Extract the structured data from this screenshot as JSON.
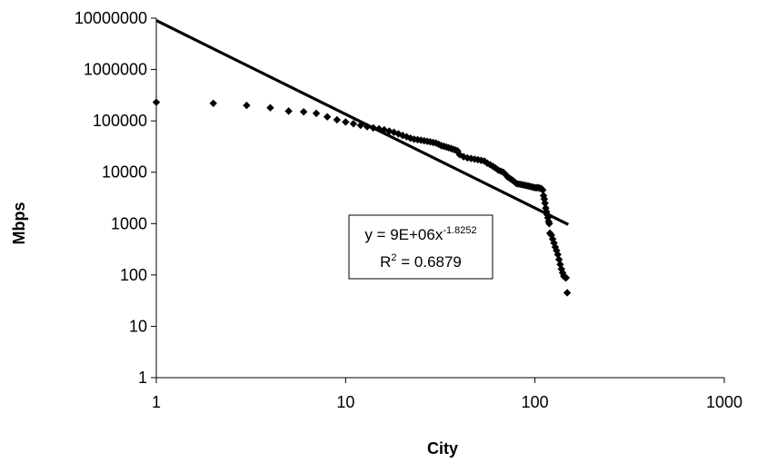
{
  "chart_data": {
    "type": "scatter",
    "xscale": "log",
    "yscale": "log",
    "xlabel": "City",
    "ylabel": "Mbps",
    "xlim": [
      1,
      1000
    ],
    "ylim": [
      1,
      10000000
    ],
    "x_ticks": [
      1,
      10,
      100,
      1000
    ],
    "x_tick_labels": [
      "1",
      "10",
      "100",
      "1000"
    ],
    "y_ticks": [
      1,
      10,
      100,
      1000,
      10000,
      100000,
      1000000,
      10000000
    ],
    "y_tick_labels": [
      "1",
      "10",
      "100",
      "1000",
      "10000",
      "100000",
      "1000000",
      "10000000"
    ],
    "grid": false,
    "legend": "none",
    "marker": "diamond",
    "marker_color": "#000000",
    "trendline": {
      "type": "power",
      "coefficient": 9000000,
      "exponent": -1.8252,
      "x_range": [
        1,
        150
      ],
      "color": "#000000",
      "equation_prefix": "y = 9E+06x",
      "equation_exponent": "-1.8252",
      "r2_prefix": "R",
      "r2_sup": "2",
      "r2_suffix": " = 0.6879"
    },
    "points": [
      [
        1,
        230000
      ],
      [
        2,
        220000
      ],
      [
        3,
        200000
      ],
      [
        4,
        180000
      ],
      [
        5,
        155000
      ],
      [
        6,
        150000
      ],
      [
        7,
        140000
      ],
      [
        8,
        120000
      ],
      [
        9,
        105000
      ],
      [
        10,
        95000
      ],
      [
        11,
        88000
      ],
      [
        12,
        82000
      ],
      [
        13,
        77000
      ],
      [
        14,
        73000
      ],
      [
        15,
        70000
      ],
      [
        16,
        67000
      ],
      [
        17,
        63000
      ],
      [
        18,
        60000
      ],
      [
        19,
        56000
      ],
      [
        20,
        52000
      ],
      [
        21,
        49000
      ],
      [
        22,
        46000
      ],
      [
        23,
        44000
      ],
      [
        24,
        43000
      ],
      [
        25,
        42000
      ],
      [
        26,
        41000
      ],
      [
        27,
        40000
      ],
      [
        28,
        39000
      ],
      [
        29,
        38000
      ],
      [
        30,
        37000
      ],
      [
        31,
        35000
      ],
      [
        32,
        33000
      ],
      [
        33,
        32000
      ],
      [
        34,
        31000
      ],
      [
        35,
        30000
      ],
      [
        36,
        29000
      ],
      [
        37,
        28000
      ],
      [
        38,
        27000
      ],
      [
        39,
        26000
      ],
      [
        40,
        22000
      ],
      [
        42,
        20000
      ],
      [
        44,
        19000
      ],
      [
        46,
        18500
      ],
      [
        48,
        18000
      ],
      [
        50,
        17500
      ],
      [
        52,
        17000
      ],
      [
        54,
        16500
      ],
      [
        56,
        15000
      ],
      [
        58,
        14000
      ],
      [
        60,
        13000
      ],
      [
        62,
        12000
      ],
      [
        64,
        11000
      ],
      [
        66,
        10500
      ],
      [
        68,
        10000
      ],
      [
        70,
        9000
      ],
      [
        72,
        8000
      ],
      [
        74,
        7500
      ],
      [
        76,
        7000
      ],
      [
        78,
        6500
      ],
      [
        80,
        6000
      ],
      [
        82,
        5900
      ],
      [
        84,
        5800
      ],
      [
        86,
        5700
      ],
      [
        88,
        5600
      ],
      [
        90,
        5500
      ],
      [
        92,
        5400
      ],
      [
        94,
        5300
      ],
      [
        96,
        5200
      ],
      [
        98,
        5100
      ],
      [
        100,
        5000
      ],
      [
        102,
        5000
      ],
      [
        104,
        5000
      ],
      [
        106,
        4900
      ],
      [
        108,
        4800
      ],
      [
        110,
        4500
      ],
      [
        111,
        3500
      ],
      [
        112,
        3000
      ],
      [
        113,
        2500
      ],
      [
        114,
        2000
      ],
      [
        115,
        1700
      ],
      [
        116,
        1500
      ],
      [
        117,
        1300
      ],
      [
        118,
        1100
      ],
      [
        119,
        1000
      ],
      [
        120,
        650
      ],
      [
        122,
        600
      ],
      [
        124,
        500
      ],
      [
        126,
        420
      ],
      [
        128,
        350
      ],
      [
        130,
        300
      ],
      [
        132,
        250
      ],
      [
        134,
        200
      ],
      [
        136,
        160
      ],
      [
        138,
        130
      ],
      [
        140,
        110
      ],
      [
        142,
        95
      ],
      [
        144,
        90
      ],
      [
        146,
        88
      ],
      [
        148,
        45
      ]
    ]
  }
}
